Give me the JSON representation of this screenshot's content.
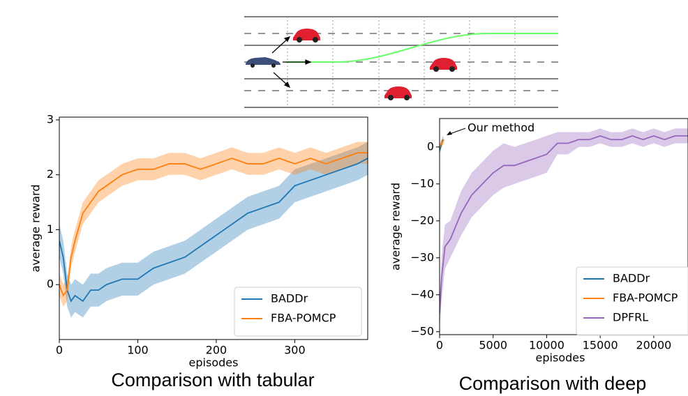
{
  "chart_data": [
    {
      "type": "line",
      "caption": "Comparison with tabular",
      "xlabel": "episodes",
      "ylabel": "average reward",
      "x": [
        0,
        5,
        10,
        15,
        20,
        30,
        40,
        50,
        60,
        80,
        100,
        120,
        140,
        160,
        180,
        200,
        220,
        240,
        260,
        280,
        300,
        320,
        340,
        360,
        380,
        393
      ],
      "series": [
        {
          "name": "BADDr",
          "color": "#1f77b4",
          "values": [
            0.8,
            0.5,
            -0.1,
            -0.3,
            -0.2,
            -0.3,
            -0.1,
            -0.1,
            0.0,
            0.1,
            0.1,
            0.3,
            0.4,
            0.5,
            0.7,
            0.9,
            1.1,
            1.3,
            1.4,
            1.5,
            1.8,
            1.9,
            2.0,
            2.1,
            2.2,
            2.3
          ],
          "lower": [
            0.5,
            0.2,
            -0.4,
            -0.6,
            -0.5,
            -0.6,
            -0.4,
            -0.4,
            -0.3,
            -0.2,
            -0.2,
            0.0,
            0.1,
            0.2,
            0.4,
            0.6,
            0.8,
            1.0,
            1.1,
            1.2,
            1.5,
            1.6,
            1.7,
            1.8,
            1.9,
            2.0
          ],
          "upper": [
            1.1,
            0.8,
            0.2,
            0.0,
            0.1,
            0.0,
            0.2,
            0.2,
            0.3,
            0.4,
            0.4,
            0.6,
            0.7,
            0.8,
            1.0,
            1.2,
            1.4,
            1.6,
            1.7,
            1.8,
            2.1,
            2.2,
            2.3,
            2.4,
            2.5,
            2.6
          ]
        },
        {
          "name": "FBA-POMCP",
          "color": "#ff7f0e",
          "values": [
            0.0,
            -0.2,
            -0.1,
            0.5,
            0.8,
            1.3,
            1.5,
            1.7,
            1.8,
            2.0,
            2.1,
            2.1,
            2.2,
            2.2,
            2.1,
            2.2,
            2.3,
            2.2,
            2.2,
            2.3,
            2.2,
            2.3,
            2.2,
            2.3,
            2.4,
            2.4
          ],
          "lower": [
            -0.2,
            -0.4,
            -0.3,
            0.3,
            0.6,
            1.1,
            1.3,
            1.5,
            1.6,
            1.8,
            1.9,
            1.9,
            2.0,
            2.0,
            1.9,
            2.0,
            2.1,
            2.0,
            2.0,
            2.1,
            2.0,
            2.1,
            2.0,
            2.1,
            2.2,
            2.2
          ],
          "upper": [
            0.2,
            0.0,
            0.1,
            0.7,
            1.0,
            1.5,
            1.7,
            1.9,
            2.0,
            2.2,
            2.3,
            2.3,
            2.4,
            2.4,
            2.3,
            2.4,
            2.5,
            2.4,
            2.4,
            2.5,
            2.4,
            2.5,
            2.4,
            2.5,
            2.6,
            2.6
          ]
        }
      ],
      "xlim": [
        0,
        393
      ],
      "xticks": [
        0,
        100,
        200,
        300
      ],
      "ylim": [
        -1.0,
        3.05
      ],
      "yticks": [
        0,
        1,
        2,
        3
      ],
      "legend": "lower right"
    },
    {
      "type": "line",
      "caption": "Comparison with deep",
      "xlabel": "episodes",
      "ylabel": "average reward",
      "annotation": "Our method",
      "series": [
        {
          "name": "BADDr",
          "color": "#1f77b4",
          "x": [
            0,
            300
          ],
          "values": [
            -1,
            2
          ],
          "lower": [
            -2,
            1
          ],
          "upper": [
            0,
            3
          ]
        },
        {
          "name": "FBA-POMCP",
          "color": "#ff7f0e",
          "x": [
            0,
            400
          ],
          "values": [
            0,
            2
          ],
          "lower": [
            -1,
            1
          ],
          "upper": [
            1,
            3
          ]
        },
        {
          "name": "DPFRL",
          "color": "#9467bd",
          "x": [
            0,
            200,
            500,
            1000,
            2000,
            3000,
            4000,
            5000,
            6000,
            7000,
            8000,
            9000,
            10000,
            11000,
            12000,
            13000,
            14000,
            15000,
            16000,
            17000,
            18000,
            19000,
            20000,
            21000,
            22000,
            23200
          ],
          "values": [
            -45,
            -35,
            -27,
            -25,
            -18,
            -13,
            -10,
            -7,
            -5,
            -5,
            -4,
            -3,
            -2,
            1,
            1,
            2,
            2,
            3,
            2,
            2,
            3,
            2,
            3,
            2,
            3,
            3
          ],
          "lower": [
            -49,
            -41,
            -33,
            -30,
            -24,
            -19,
            -16,
            -13,
            -11,
            -10,
            -9,
            -8,
            -7,
            -2,
            -2,
            0,
            0,
            1,
            0,
            0,
            1,
            0,
            1,
            0,
            1,
            1
          ],
          "upper": [
            -41,
            -29,
            -21,
            -20,
            -12,
            -7,
            -4,
            -1,
            1,
            0,
            1,
            2,
            3,
            4,
            4,
            4,
            4,
            5,
            4,
            4,
            5,
            4,
            5,
            4,
            5,
            5
          ]
        }
      ],
      "xlim": [
        0,
        23200
      ],
      "xticks": [
        0,
        5000,
        10000,
        15000,
        20000
      ],
      "ylim": [
        -50.8,
        7.7
      ],
      "yticks": [
        {
          "value": -50,
          "label": "−50"
        },
        {
          "value": -40,
          "label": "−40"
        },
        {
          "value": -30,
          "label": "−30"
        },
        {
          "value": -20,
          "label": "−20"
        },
        {
          "value": -10,
          "label": "−10"
        },
        0
      ],
      "legend": "lower right"
    }
  ]
}
